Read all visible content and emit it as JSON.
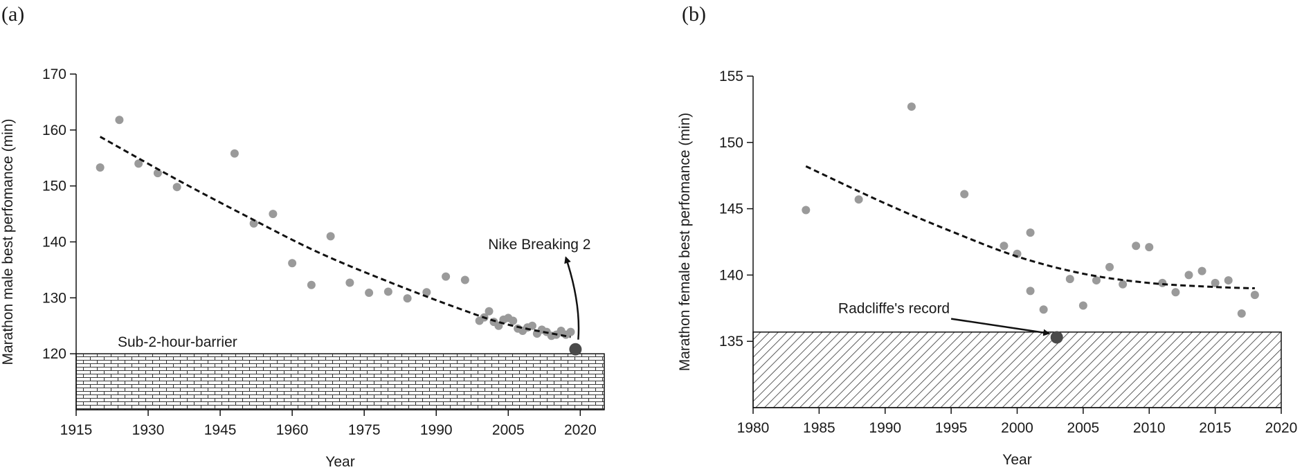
{
  "chart_data": [
    {
      "panel": "(a)",
      "type": "scatter",
      "xlabel": "Year",
      "ylabel": "Marathon male best perfomance (min)",
      "xlim": [
        1915,
        2025
      ],
      "ylim": [
        110,
        170
      ],
      "x_ticks": [
        1915,
        1930,
        1945,
        1960,
        1975,
        1990,
        2005,
        2020
      ],
      "y_ticks": [
        120,
        130,
        140,
        150,
        160,
        170
      ],
      "points": [
        {
          "x": 1920,
          "y": 153.3
        },
        {
          "x": 1924,
          "y": 161.8
        },
        {
          "x": 1928,
          "y": 154.0
        },
        {
          "x": 1932,
          "y": 152.3
        },
        {
          "x": 1936,
          "y": 149.8
        },
        {
          "x": 1948,
          "y": 155.8
        },
        {
          "x": 1952,
          "y": 143.3
        },
        {
          "x": 1956,
          "y": 145.0
        },
        {
          "x": 1960,
          "y": 136.2
        },
        {
          "x": 1964,
          "y": 132.3
        },
        {
          "x": 1968,
          "y": 141.0
        },
        {
          "x": 1972,
          "y": 132.7
        },
        {
          "x": 1976,
          "y": 130.9
        },
        {
          "x": 1980,
          "y": 131.1
        },
        {
          "x": 1984,
          "y": 129.9
        },
        {
          "x": 1988,
          "y": 131.0
        },
        {
          "x": 1992,
          "y": 133.8
        },
        {
          "x": 1996,
          "y": 133.2
        },
        {
          "x": 1999,
          "y": 125.9
        },
        {
          "x": 2000,
          "y": 126.5
        },
        {
          "x": 2001,
          "y": 127.6
        },
        {
          "x": 2002,
          "y": 125.7
        },
        {
          "x": 2003,
          "y": 125.0
        },
        {
          "x": 2004,
          "y": 126.1
        },
        {
          "x": 2005,
          "y": 126.4
        },
        {
          "x": 2006,
          "y": 125.9
        },
        {
          "x": 2007,
          "y": 124.5
        },
        {
          "x": 2008,
          "y": 124.1
        },
        {
          "x": 2009,
          "y": 124.7
        },
        {
          "x": 2010,
          "y": 125.0
        },
        {
          "x": 2011,
          "y": 123.6
        },
        {
          "x": 2012,
          "y": 124.3
        },
        {
          "x": 2013,
          "y": 123.9
        },
        {
          "x": 2014,
          "y": 123.2
        },
        {
          "x": 2015,
          "y": 123.4
        },
        {
          "x": 2016,
          "y": 124.1
        },
        {
          "x": 2017,
          "y": 123.4
        },
        {
          "x": 2018,
          "y": 123.9
        }
      ],
      "highlight_point": {
        "x": 2019,
        "y": 120.8
      },
      "trend": {
        "style": "dashed",
        "x": [
          1920,
          1935,
          1950,
          1965,
          1980,
          1995,
          2005,
          2018
        ],
        "y": [
          158.8,
          151.6,
          144.8,
          138.3,
          132.9,
          128.0,
          125.2,
          123.0
        ]
      },
      "band": {
        "from": 110,
        "to": 120,
        "pattern": "brick",
        "label": "Sub-2-hour-barrier"
      },
      "annotation": {
        "text": "Nike Breaking 2",
        "from": {
          "x": 2019,
          "y": 120.8
        },
        "to": {
          "x": 2017,
          "y": 137.2
        }
      }
    },
    {
      "panel": "(b)",
      "type": "scatter",
      "xlabel": "Year",
      "ylabel": "Marathon female best perfomance (min)",
      "xlim": [
        1980,
        2020
      ],
      "ylim": [
        130,
        155
      ],
      "x_ticks": [
        1980,
        1985,
        1990,
        1995,
        2000,
        2005,
        2010,
        2015,
        2020
      ],
      "y_ticks": [
        135,
        140,
        145,
        150,
        155
      ],
      "points": [
        {
          "x": 1984,
          "y": 144.9
        },
        {
          "x": 1988,
          "y": 145.7
        },
        {
          "x": 1992,
          "y": 152.7
        },
        {
          "x": 1996,
          "y": 146.1
        },
        {
          "x": 1999,
          "y": 142.2
        },
        {
          "x": 2000,
          "y": 141.6
        },
        {
          "x": 2001,
          "y": 143.2
        },
        {
          "x": 2001,
          "y": 138.8
        },
        {
          "x": 2002,
          "y": 137.4
        },
        {
          "x": 2004,
          "y": 139.7
        },
        {
          "x": 2005,
          "y": 137.7
        },
        {
          "x": 2006,
          "y": 139.6
        },
        {
          "x": 2007,
          "y": 140.6
        },
        {
          "x": 2008,
          "y": 139.3
        },
        {
          "x": 2009,
          "y": 142.2
        },
        {
          "x": 2010,
          "y": 142.1
        },
        {
          "x": 2011,
          "y": 139.4
        },
        {
          "x": 2012,
          "y": 138.7
        },
        {
          "x": 2013,
          "y": 140.0
        },
        {
          "x": 2014,
          "y": 140.3
        },
        {
          "x": 2015,
          "y": 139.4
        },
        {
          "x": 2016,
          "y": 139.6
        },
        {
          "x": 2017,
          "y": 137.1
        },
        {
          "x": 2018,
          "y": 138.5
        }
      ],
      "highlight_point": {
        "x": 2003,
        "y": 135.3
      },
      "trend": {
        "style": "dashed",
        "x": [
          1984,
          1990,
          1995,
          2000,
          2005,
          2010,
          2015,
          2018
        ],
        "y": [
          148.2,
          145.4,
          143.3,
          141.4,
          140.1,
          139.4,
          139.1,
          139.0
        ]
      },
      "band": {
        "from": 130,
        "to": 135.7,
        "pattern": "diagonal",
        "label": "Radcliffe's record"
      },
      "annotation": {
        "text": "Radcliffe's record",
        "from": {
          "x": 1995,
          "y": 136.7
        },
        "to": {
          "x": 2002.4,
          "y": 135.6
        }
      }
    }
  ]
}
